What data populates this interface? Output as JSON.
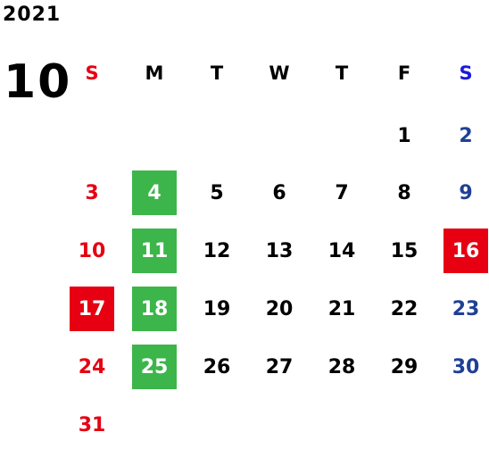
{
  "calendar": {
    "year": "2021",
    "month": "10",
    "weekdays": [
      "S",
      "M",
      "T",
      "W",
      "T",
      "F",
      "S"
    ],
    "colors": {
      "sunday": "#e60012",
      "saturday_header": "#1a1adc",
      "saturday": "#1f4096",
      "weekday": "#000000",
      "highlight_green": "#3cb54a",
      "highlight_red": "#e60012"
    },
    "weeks": [
      [
        {
          "day": ""
        },
        {
          "day": ""
        },
        {
          "day": ""
        },
        {
          "day": ""
        },
        {
          "day": ""
        },
        {
          "day": "1"
        },
        {
          "day": "2"
        }
      ],
      [
        {
          "day": "3"
        },
        {
          "day": "4",
          "highlight": "green"
        },
        {
          "day": "5"
        },
        {
          "day": "6"
        },
        {
          "day": "7"
        },
        {
          "day": "8"
        },
        {
          "day": "9"
        }
      ],
      [
        {
          "day": "10"
        },
        {
          "day": "11",
          "highlight": "green"
        },
        {
          "day": "12"
        },
        {
          "day": "13"
        },
        {
          "day": "14"
        },
        {
          "day": "15"
        },
        {
          "day": "16",
          "highlight": "red"
        }
      ],
      [
        {
          "day": "17",
          "highlight": "red"
        },
        {
          "day": "18",
          "highlight": "green"
        },
        {
          "day": "19"
        },
        {
          "day": "20"
        },
        {
          "day": "21"
        },
        {
          "day": "22"
        },
        {
          "day": "23"
        }
      ],
      [
        {
          "day": "24"
        },
        {
          "day": "25",
          "highlight": "green"
        },
        {
          "day": "26"
        },
        {
          "day": "27"
        },
        {
          "day": "28"
        },
        {
          "day": "29"
        },
        {
          "day": "30"
        }
      ],
      [
        {
          "day": "31"
        },
        {
          "day": ""
        },
        {
          "day": ""
        },
        {
          "day": ""
        },
        {
          "day": ""
        },
        {
          "day": ""
        },
        {
          "day": ""
        }
      ]
    ]
  }
}
